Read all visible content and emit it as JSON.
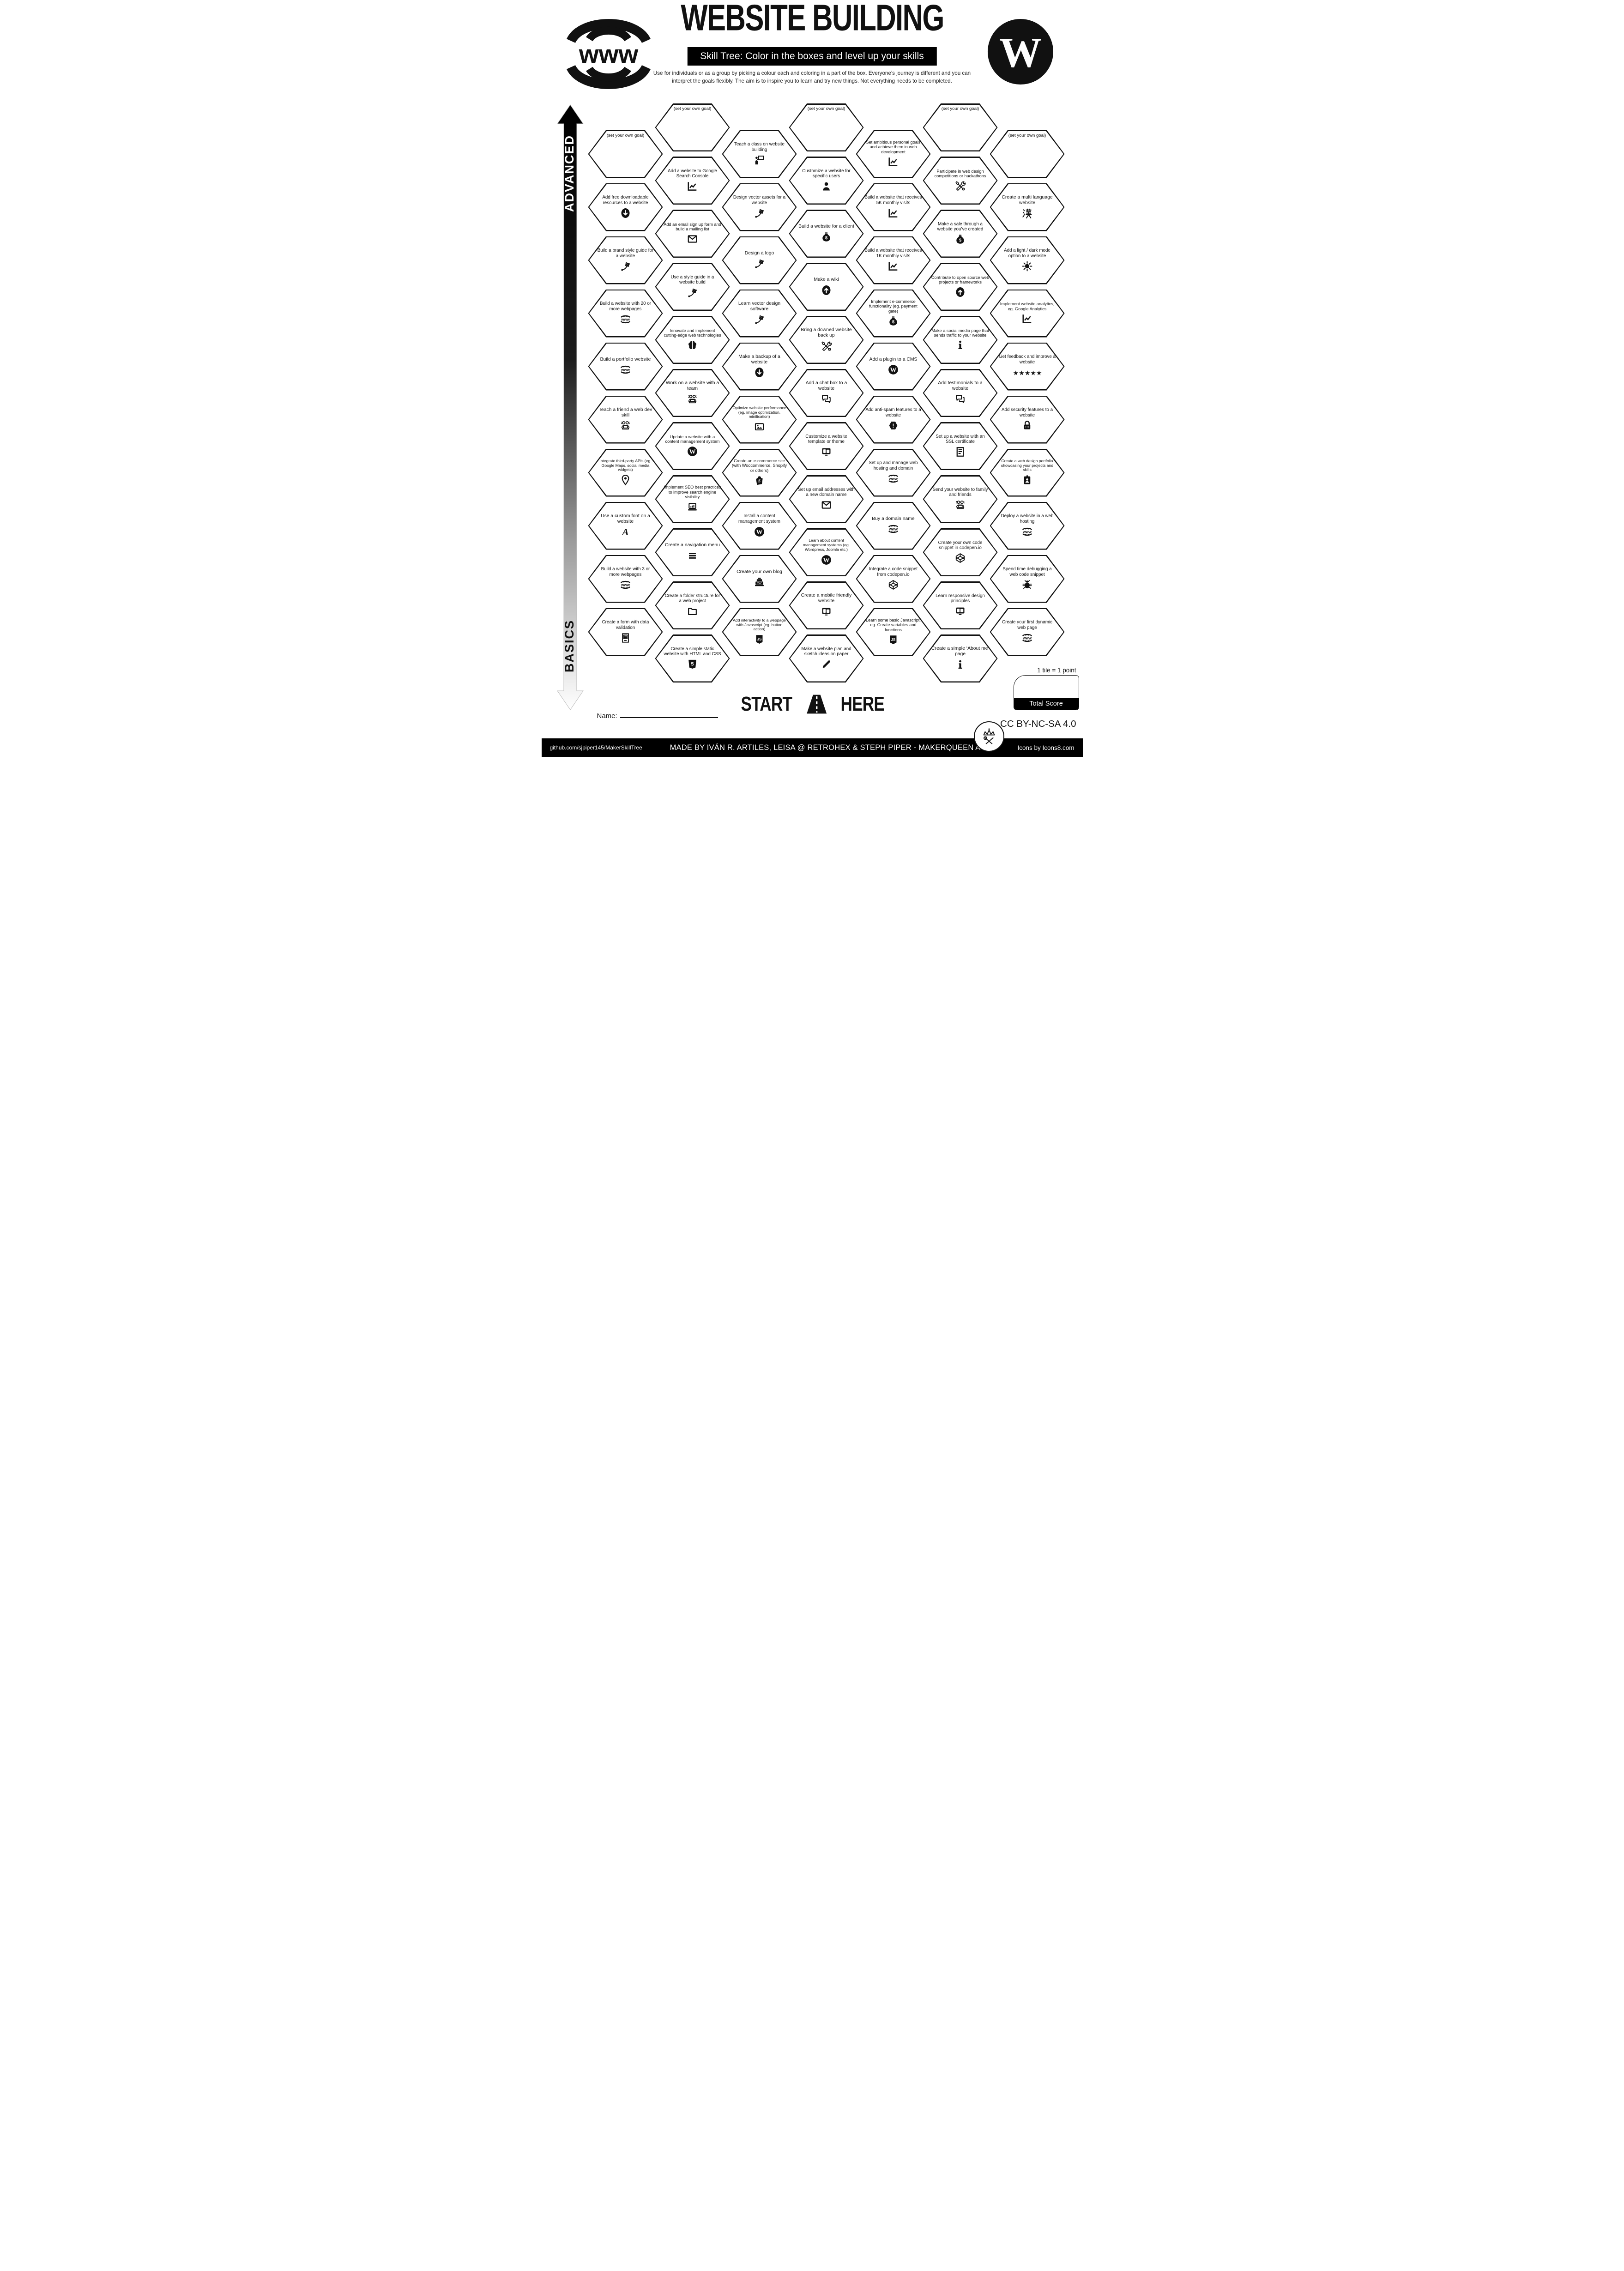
{
  "header": {
    "title": "WEBSITE BUILDING",
    "banner": "Skill Tree:  Color in the boxes and level up your skills",
    "description_line1": "Use for individuals or as a group by picking a colour each and coloring in a part of the box.  Everyone’s journey is different and you can",
    "description_line2": "interpret the goals flexibly.  The aim is to inspire you to learn and try new things. Not everything needs to be completed."
  },
  "logos": {
    "left": "www-globe-logo",
    "right": "wordpress-logo"
  },
  "axis": {
    "top": "ADVANCED",
    "bottom": "BASICS"
  },
  "start": {
    "word_left": "START",
    "word_right": "HERE",
    "icon": "road-icon"
  },
  "scoring": {
    "note": "1 tile = 1 point",
    "total_label": "Total Score"
  },
  "name_label": "Name:",
  "license": "CC BY-NC-SA 4.0",
  "footer": {
    "left": "github.com/sjpiper145/MakerSkillTree",
    "center": "MADE BY IVÁN R. ARTILES, LEISA @ RETROHEX  &  STEPH PIPER  -  MAKERQUEEN AU",
    "right": "Icons by Icons8.com"
  },
  "columns": [
    {
      "hexes": [
        {
          "label": "(set your own goal)",
          "icon": null
        },
        {
          "label": "Add free downloadable resources to a website",
          "icon": "download-circle"
        },
        {
          "label": "Build a brand style guide for a website",
          "icon": "pen-tool"
        },
        {
          "label": "Build a website with 20 or more webpages",
          "icon": "www-globe"
        },
        {
          "label": "Build a portfolio website",
          "icon": "www-globe"
        },
        {
          "label": "Teach a friend a web dev skill",
          "icon": "people-laptop"
        },
        {
          "label": "Integrate third-party APIs (eg. Google Maps, social media widgets)",
          "icon": "map-pin"
        },
        {
          "label": "Use a custom font on a website",
          "icon": "font-a"
        },
        {
          "label": "Build a website with 3 or more webpages",
          "icon": "www-globe"
        },
        {
          "label": "Create a form with data validation",
          "icon": "form"
        }
      ]
    },
    {
      "hexes": [
        {
          "label": "(set your own goal)",
          "icon": null
        },
        {
          "label": "Add a website to Google Search Console",
          "icon": "chart-line"
        },
        {
          "label": "Add an email sign up form and build a mailing list",
          "icon": "envelope"
        },
        {
          "label": "Use a style guide in a website build",
          "icon": "pen-tool"
        },
        {
          "label": "Innovate and implement cutting-edge web technologies",
          "icon": "brain"
        },
        {
          "label": "Work on a website with a team",
          "icon": "people-laptop"
        },
        {
          "label": "Update a website with a content management system",
          "icon": "wordpress"
        },
        {
          "label": "Implement SEO best practices to improve search engine visibility",
          "icon": "laptop-chart"
        },
        {
          "label": "Create a navigation menu",
          "icon": "menu-bars"
        },
        {
          "label": "Create a folder structure for a web project",
          "icon": "folder"
        },
        {
          "label": "Create a simple static website with HTML and CSS",
          "icon": "html5"
        }
      ]
    },
    {
      "hexes": [
        {
          "label": "Teach a class on website building",
          "icon": "presentation"
        },
        {
          "label": "Design vector assets for a website",
          "icon": "pen-tool"
        },
        {
          "label": "Design a logo",
          "icon": "pen-tool"
        },
        {
          "label": "Learn vector design software",
          "icon": "pen-tool"
        },
        {
          "label": "Make a backup of a website",
          "icon": "download-circle"
        },
        {
          "label": "Optimize website performance (eg. image optimization, minification)",
          "icon": "image"
        },
        {
          "label": "Create an e-commerce site (with Woocommerce, Shopify or others)",
          "icon": "shopify-bag"
        },
        {
          "label": "Install a content management system",
          "icon": "wordpress"
        },
        {
          "label": "Create your own blog",
          "icon": "typewriter"
        },
        {
          "label": "Add interactivity to a webpage with Javascript (eg. button action)",
          "icon": "js-shield"
        }
      ]
    },
    {
      "hexes": [
        {
          "label": "(set your own goal)",
          "icon": null
        },
        {
          "label": "Customize a website for specific users",
          "icon": "person"
        },
        {
          "label": "Build a website for a client",
          "icon": "money-bag"
        },
        {
          "label": "Make a wiki",
          "icon": "arrow-up-circle"
        },
        {
          "label": "Bring a downed website back up",
          "icon": "tools"
        },
        {
          "label": "Add a chat box to a website",
          "icon": "chat-boxes"
        },
        {
          "label": "Customize a website template or theme",
          "icon": "devices"
        },
        {
          "label": "Set up email addresses with a new domain name",
          "icon": "envelope"
        },
        {
          "label": "Learn about content management systems (eg. Wordpress, Joomla etc.)",
          "icon": "wordpress"
        },
        {
          "label": "Create a mobile friendly website",
          "icon": "devices"
        },
        {
          "label": "Make a website plan and sketch ideas on paper",
          "icon": "pencil"
        }
      ]
    },
    {
      "hexes": [
        {
          "label": "Set ambitious personal goals and achieve them in web development",
          "icon": "chart-line"
        },
        {
          "label": "Build a website that receives 5K monthly visits",
          "icon": "chart-line"
        },
        {
          "label": "Build a website that receives 1K monthly visits",
          "icon": "chart-line"
        },
        {
          "label": "Implement e-commerce functionality (eg. payment gate)",
          "icon": "money-bag"
        },
        {
          "label": "Add a plugin to a CMS",
          "icon": "wordpress"
        },
        {
          "label": "Add anti-spam features to a website",
          "icon": "warning-hex"
        },
        {
          "label": "Set up and manage web hosting and domain",
          "icon": "www-globe"
        },
        {
          "label": "Buy a domain name",
          "icon": "www-globe"
        },
        {
          "label": "Integrate a code snippet from codepen.io",
          "icon": "codepen-cube"
        },
        {
          "label": "Learn some basic Javascript, eg. Create variables and functions",
          "icon": "js-shield"
        }
      ]
    },
    {
      "hexes": [
        {
          "label": "(set your own goal)",
          "icon": null
        },
        {
          "label": "Participate in web design competitions or hackathons",
          "icon": "tools"
        },
        {
          "label": "Make a sale through a website you’ve created",
          "icon": "money-bag"
        },
        {
          "label": "Contribute to open source web projects or frameworks",
          "icon": "arrow-up-circle"
        },
        {
          "label": "Make a social media page that sends traffic to your website",
          "icon": "info"
        },
        {
          "label": "Add testimonials to a website",
          "icon": "chat-boxes"
        },
        {
          "label": "Set up a website with an SSL certificate",
          "icon": "certificate"
        },
        {
          "label": "Send your website to family and friends",
          "icon": "people-laptop"
        },
        {
          "label": "Create your own code snippet in codepen.io",
          "icon": "codepen-cube"
        },
        {
          "label": "Learn responsive design principles",
          "icon": "devices"
        },
        {
          "label": "Create a simple ‘About me’ page",
          "icon": "info"
        }
      ]
    },
    {
      "hexes": [
        {
          "label": "(set your own goal)",
          "icon": null
        },
        {
          "label": "Create a multi language website",
          "icon": "hanzi"
        },
        {
          "label": "Add a light / dark mode option to a website",
          "icon": "sun"
        },
        {
          "label": "Implement website analytics, eg. Google Analytics",
          "icon": "chart-line"
        },
        {
          "label": "Get feedback and improve a website",
          "icon": "stars"
        },
        {
          "label": "Add security features to a website",
          "icon": "lock"
        },
        {
          "label": "Create a web design portfolio showcasing your projects and skills",
          "icon": "id-badge"
        },
        {
          "label": "Deploy a website in a web hosting",
          "icon": "www-globe"
        },
        {
          "label": "Spend time debugging a web code snippet",
          "icon": "bug"
        },
        {
          "label": "Create your first dynamic web page",
          "icon": "www-globe"
        }
      ]
    }
  ]
}
